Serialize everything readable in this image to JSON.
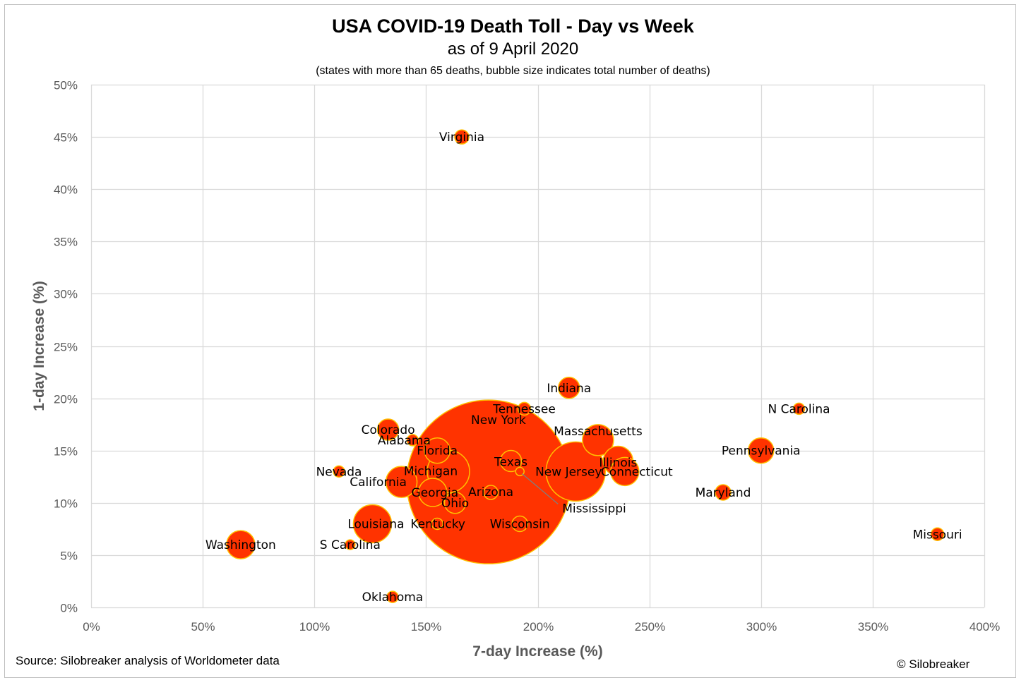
{
  "chart_data": {
    "type": "bubble",
    "title": "USA COVID-19 Death Toll - Day vs Week",
    "subtitle": "as of 9 April 2020",
    "note": "(states with more than 65 deaths, bubble size indicates total number of deaths)",
    "xlabel": "7-day Increase (%)",
    "ylabel": "1-day Increase (%)",
    "xlim": [
      0,
      400
    ],
    "ylim": [
      0,
      50
    ],
    "xticks": [
      0,
      50,
      100,
      150,
      200,
      250,
      300,
      350,
      400
    ],
    "yticks": [
      0,
      5,
      10,
      15,
      20,
      25,
      30,
      35,
      40,
      45,
      50
    ],
    "xtick_labels": [
      "0%",
      "50%",
      "100%",
      "150%",
      "200%",
      "250%",
      "300%",
      "350%",
      "400%"
    ],
    "ytick_labels": [
      "0%",
      "5%",
      "10%",
      "15%",
      "20%",
      "25%",
      "30%",
      "35%",
      "40%",
      "45%",
      "50%"
    ],
    "grid": true,
    "colors": {
      "bubble_fill": "#ff3300",
      "bubble_stroke": "#ffc000",
      "grid": "#d9d9d9",
      "tick_text": "#595959",
      "leader": "#7f7f7f"
    },
    "points": [
      {
        "name": "New York",
        "x": 178,
        "y": 12,
        "r": 116,
        "label_dx": 14,
        "label_dy": -88
      },
      {
        "name": "New Jersey",
        "x": 217,
        "y": 13,
        "r": 42,
        "label_dx": -10,
        "label_dy": 0
      },
      {
        "name": "Michigan",
        "x": 160,
        "y": 13,
        "r": 30,
        "label_dx": -25,
        "label_dy": -1
      },
      {
        "name": "Louisiana",
        "x": 126,
        "y": 8,
        "r": 27,
        "label_dx": 5,
        "label_dy": 0
      },
      {
        "name": "California",
        "x": 139,
        "y": 12,
        "r": 22,
        "label_dx": -33,
        "label_dy": 0
      },
      {
        "name": "Massachusetts",
        "x": 227,
        "y": 16,
        "r": 22,
        "label_dx": 0,
        "label_dy": -13
      },
      {
        "name": "Illinois",
        "x": 236,
        "y": 14,
        "r": 21,
        "label_dx": 0,
        "label_dy": 2
      },
      {
        "name": "Washington",
        "x": 67,
        "y": 6,
        "r": 20,
        "label_dx": 0,
        "label_dy": 0
      },
      {
        "name": "Pennsylvania",
        "x": 300,
        "y": 15,
        "r": 18,
        "label_dx": 0,
        "label_dy": 0
      },
      {
        "name": "Connecticut",
        "x": 239,
        "y": 13,
        "r": 20,
        "label_dx": 17,
        "label_dy": 0
      },
      {
        "name": "Georgia",
        "x": 153,
        "y": 11,
        "r": 20,
        "label_dx": 3,
        "label_dy": 0
      },
      {
        "name": "Florida",
        "x": 155,
        "y": 15,
        "r": 18,
        "label_dx": 0,
        "label_dy": 0
      },
      {
        "name": "Colorado",
        "x": 133,
        "y": 17,
        "r": 15,
        "label_dx": 0,
        "label_dy": 0
      },
      {
        "name": "Indiana",
        "x": 214,
        "y": 21,
        "r": 15,
        "label_dx": 0,
        "label_dy": 0
      },
      {
        "name": "Texas",
        "x": 188,
        "y": 14,
        "r": 15,
        "label_dx": 0,
        "label_dy": 1
      },
      {
        "name": "Ohio",
        "x": 163,
        "y": 10,
        "r": 15,
        "label_dx": 0,
        "label_dy": 0
      },
      {
        "name": "Maryland",
        "x": 283,
        "y": 11,
        "r": 11,
        "label_dx": 0,
        "label_dy": 0
      },
      {
        "name": "Arizona",
        "x": 179,
        "y": 11,
        "r": 10,
        "label_dx": 0,
        "label_dy": -1
      },
      {
        "name": "Wisconsin",
        "x": 192,
        "y": 8,
        "r": 11,
        "label_dx": 0,
        "label_dy": 0
      },
      {
        "name": "Virginia",
        "x": 166,
        "y": 45,
        "r": 10,
        "label_dx": 0,
        "label_dy": 0
      },
      {
        "name": "Tennessee",
        "x": 194,
        "y": 19,
        "r": 9,
        "label_dx": 0,
        "label_dy": 0
      },
      {
        "name": "N Carolina",
        "x": 317,
        "y": 19,
        "r": 8,
        "label_dx": 0,
        "label_dy": 0
      },
      {
        "name": "Missouri",
        "x": 379,
        "y": 7,
        "r": 9,
        "label_dx": 0,
        "label_dy": 0
      },
      {
        "name": "Nevada",
        "x": 111,
        "y": 13,
        "r": 8,
        "label_dx": 0,
        "label_dy": 0
      },
      {
        "name": "Alabama",
        "x": 144,
        "y": 16,
        "r": 8,
        "label_dx": -12,
        "label_dy": 0
      },
      {
        "name": "Kentucky",
        "x": 155,
        "y": 8,
        "r": 8,
        "label_dx": 1,
        "label_dy": 0
      },
      {
        "name": "Oklahoma",
        "x": 135,
        "y": 1,
        "r": 8,
        "label_dx": 0,
        "label_dy": 0
      },
      {
        "name": "S Carolina",
        "x": 116,
        "y": 6,
        "r": 7,
        "label_dx": 0,
        "label_dy": 0
      },
      {
        "name": "Mississippi",
        "x": 192,
        "y": 13,
        "r": 6,
        "label_dx": 0,
        "label_dy": 0,
        "callout": true
      }
    ]
  },
  "footer": {
    "source": "Source: Silobreaker analysis of Worldometer data",
    "copyright": "© Silobreaker"
  }
}
